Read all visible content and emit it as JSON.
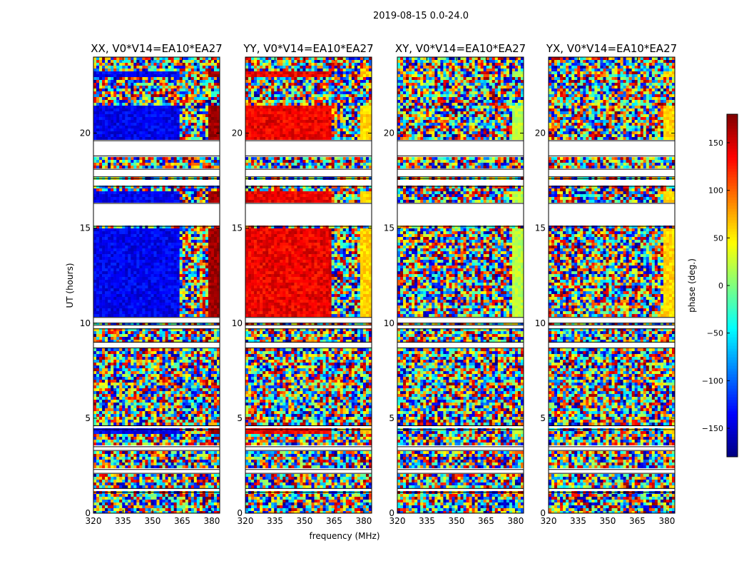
{
  "figure": {
    "suptitle": "2019-08-15 0.0-24.0",
    "xlabel": "frequency (MHz)",
    "ylabel": "UT (hours)"
  },
  "chart_data": {
    "type": "heatmap",
    "title": "2019-08-15 0.0-24.0",
    "xlabel": "frequency (MHz)",
    "ylabel": "UT (hours)",
    "xlim": [
      320,
      384
    ],
    "ylim": [
      0,
      24
    ],
    "xticks": [
      320,
      335,
      350,
      365,
      380
    ],
    "yticks": [
      0,
      5,
      10,
      15,
      20
    ],
    "colorbar": {
      "label": "phase (deg.)",
      "range": [
        -180,
        180
      ],
      "ticks": [
        -150,
        -100,
        -50,
        0,
        50,
        100,
        150
      ],
      "tick_labels": [
        "−150",
        "−100",
        "−50",
        "0",
        "50",
        "100",
        "150"
      ],
      "colormap": [
        "#00007f",
        "#0000ff",
        "#007fff",
        "#00ffff",
        "#7fff7f",
        "#ffff00",
        "#ff7f00",
        "#ff0000",
        "#7f0000"
      ]
    },
    "panels": [
      {
        "title": "XX, V0*V14=EA10*EA27",
        "coherent_phase_deg": -140,
        "coherent_hi_deg": 170
      },
      {
        "title": "YY, V0*V14=EA10*EA27",
        "coherent_phase_deg": 140,
        "coherent_hi_deg": 60
      },
      {
        "title": "XY, V0*V14=EA10*EA27",
        "coherent_phase_deg": null,
        "coherent_hi_deg": 20
      },
      {
        "title": "YX, V0*V14=EA10*EA27",
        "coherent_phase_deg": null,
        "coherent_hi_deg": 60
      }
    ],
    "flagged_ut_hours": [
      [
        19.6,
        18.8
      ],
      [
        18.1,
        17.7
      ],
      [
        17.6,
        17.2
      ],
      [
        16.3,
        15.1
      ],
      [
        10.3,
        10.0
      ],
      [
        9.9,
        9.7
      ],
      [
        9.0,
        8.7
      ],
      [
        4.6,
        4.4
      ],
      [
        3.5,
        3.3
      ],
      [
        2.3,
        2.1
      ],
      [
        1.3,
        1.1
      ]
    ],
    "coherent_ut_hours": [
      [
        23.3,
        23.0
      ],
      [
        21.5,
        19.6
      ],
      [
        17.0,
        16.3
      ],
      [
        15.0,
        10.3
      ],
      [
        4.4,
        4.1
      ]
    ]
  }
}
